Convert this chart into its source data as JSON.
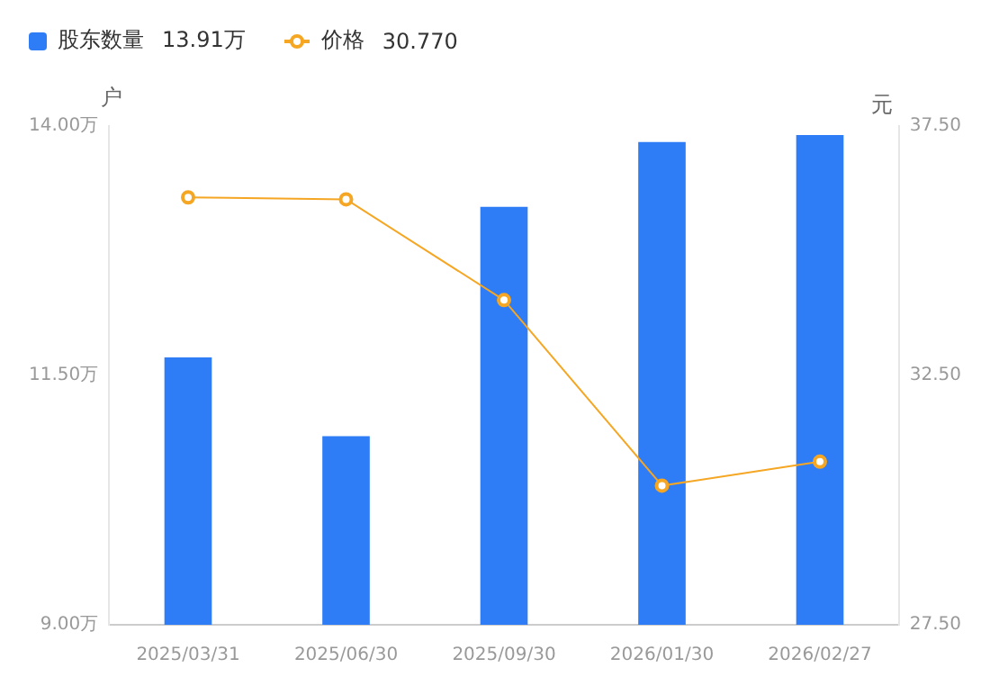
{
  "chart_data": {
    "type": "bar",
    "ylabel": "户",
    "y2label": "元",
    "categories": [
      "2025/03/31",
      "2025/06/30",
      "2025/09/30",
      "2026/01/30",
      "2026/02/27"
    ],
    "series": [
      {
        "name": "股东数量",
        "color": "#2e7cf6",
        "values": [
          11.68,
          10.89,
          13.19,
          13.84,
          13.91
        ]
      },
      {
        "name": "价格",
        "type": "line",
        "axis": "y2",
        "color": "#f5a623",
        "marker": "circle",
        "values": [
          36.07,
          36.03,
          34.01,
          30.29,
          30.77
        ]
      }
    ],
    "ylim": [
      9,
      14
    ],
    "yticks": [
      {
        "value": 9,
        "label": "9.00万"
      },
      {
        "value": 11.5,
        "label": "11.50万"
      },
      {
        "value": 14,
        "label": "14.00万"
      }
    ],
    "y2lim": [
      27.5,
      37.5
    ],
    "y2ticks": [
      {
        "value": 27.5,
        "label": "27.50"
      },
      {
        "value": 32.5,
        "label": "32.50"
      },
      {
        "value": 37.5,
        "label": "37.50"
      }
    ],
    "legend": "top left",
    "annotations": [
      "13.91万",
      "30.770"
    ]
  }
}
